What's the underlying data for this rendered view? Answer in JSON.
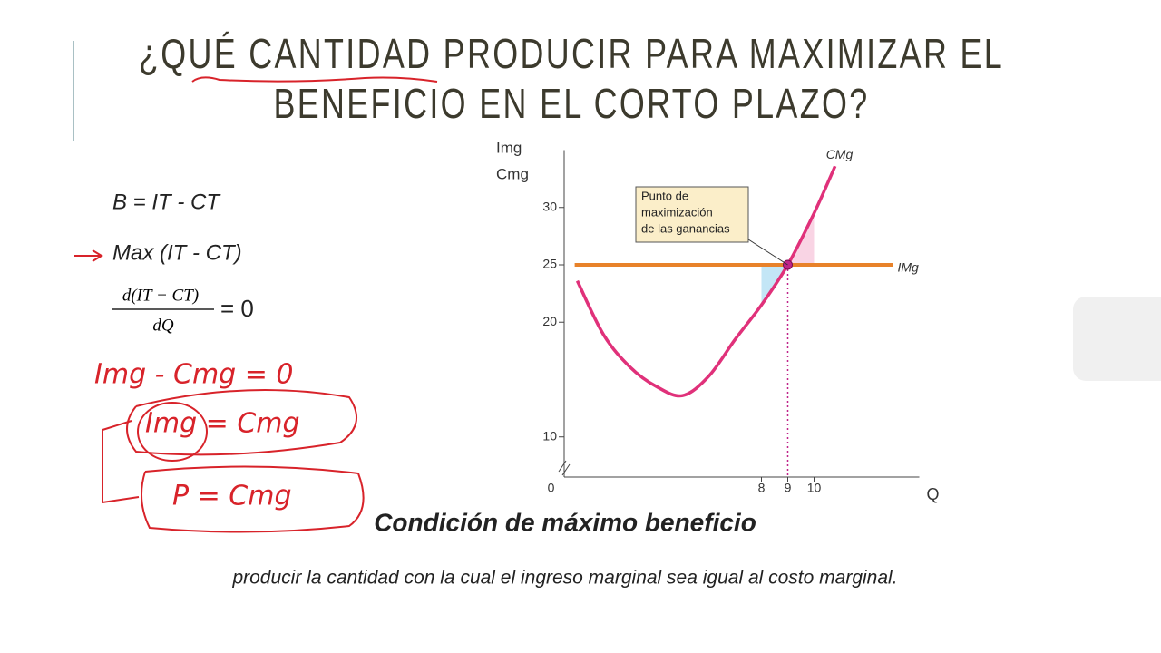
{
  "slide": {
    "title": [
      "¿QUÉ CANTIDAD PRODUCIR PARA MAXIMIZAR EL",
      "BENEFICIO EN EL CORTO PLAZO?"
    ],
    "formulas": {
      "profit": "B = IT - CT",
      "max": "Max (IT - CT)",
      "derivative_numerator": "d(IT − CT)",
      "derivative_denominator": "dQ",
      "derivative_equals": "= 0"
    },
    "handwriting": [
      "Img - Cmg = 0",
      "Img = Cmg",
      "P = Cmg"
    ],
    "caption": {
      "heading": "Condición de máximo beneficio",
      "text": "producir la cantidad con la cual el ingreso marginal sea igual al costo marginal."
    }
  },
  "chart_data": {
    "type": "line",
    "y_label": [
      "Img",
      "Cmg"
    ],
    "x_label": "Q",
    "annotation": [
      "Punto de",
      "maximización",
      "de las ganancias"
    ],
    "xlim": [
      0.5,
      14
    ],
    "ylim": [
      6.5,
      35
    ],
    "xticks": [
      0,
      8,
      9,
      10
    ],
    "yticks": [
      10,
      20,
      25,
      30
    ],
    "series": [
      {
        "name": "IMg",
        "color": "#e8822a",
        "x": [
          0.9,
          13
        ],
        "values": [
          25,
          25
        ]
      },
      {
        "name": "CMg",
        "color": "#e0317a",
        "x": [
          1,
          2,
          3,
          4,
          5,
          6,
          7,
          8,
          9,
          10,
          10.8
        ],
        "values": [
          23.6,
          18.9,
          16.1,
          14.4,
          13.6,
          15.3,
          18.5,
          21.5,
          25,
          29.5,
          33.6
        ]
      }
    ]
  }
}
